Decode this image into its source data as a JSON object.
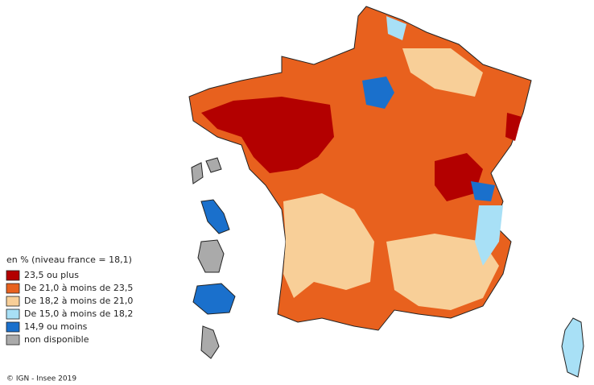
{
  "legend": {
    "title": "en % (niveau france = 18,1)",
    "items": [
      {
        "label": "23,5 ou plus",
        "color": "#b30000"
      },
      {
        "label": "De 21,0 à moins de 23,5",
        "color": "#e8611e"
      },
      {
        "label": "De 18,2 à moins de 21,0",
        "color": "#f8cf98"
      },
      {
        "label": "De 15,0 à moins de 18,2",
        "color": "#a8e0f6"
      },
      {
        "label": "14,9 ou moins",
        "color": "#1a70cc"
      },
      {
        "label": "non disponible",
        "color": "#aaaaaa"
      }
    ]
  },
  "credit": "© IGN - Insee 2019"
}
